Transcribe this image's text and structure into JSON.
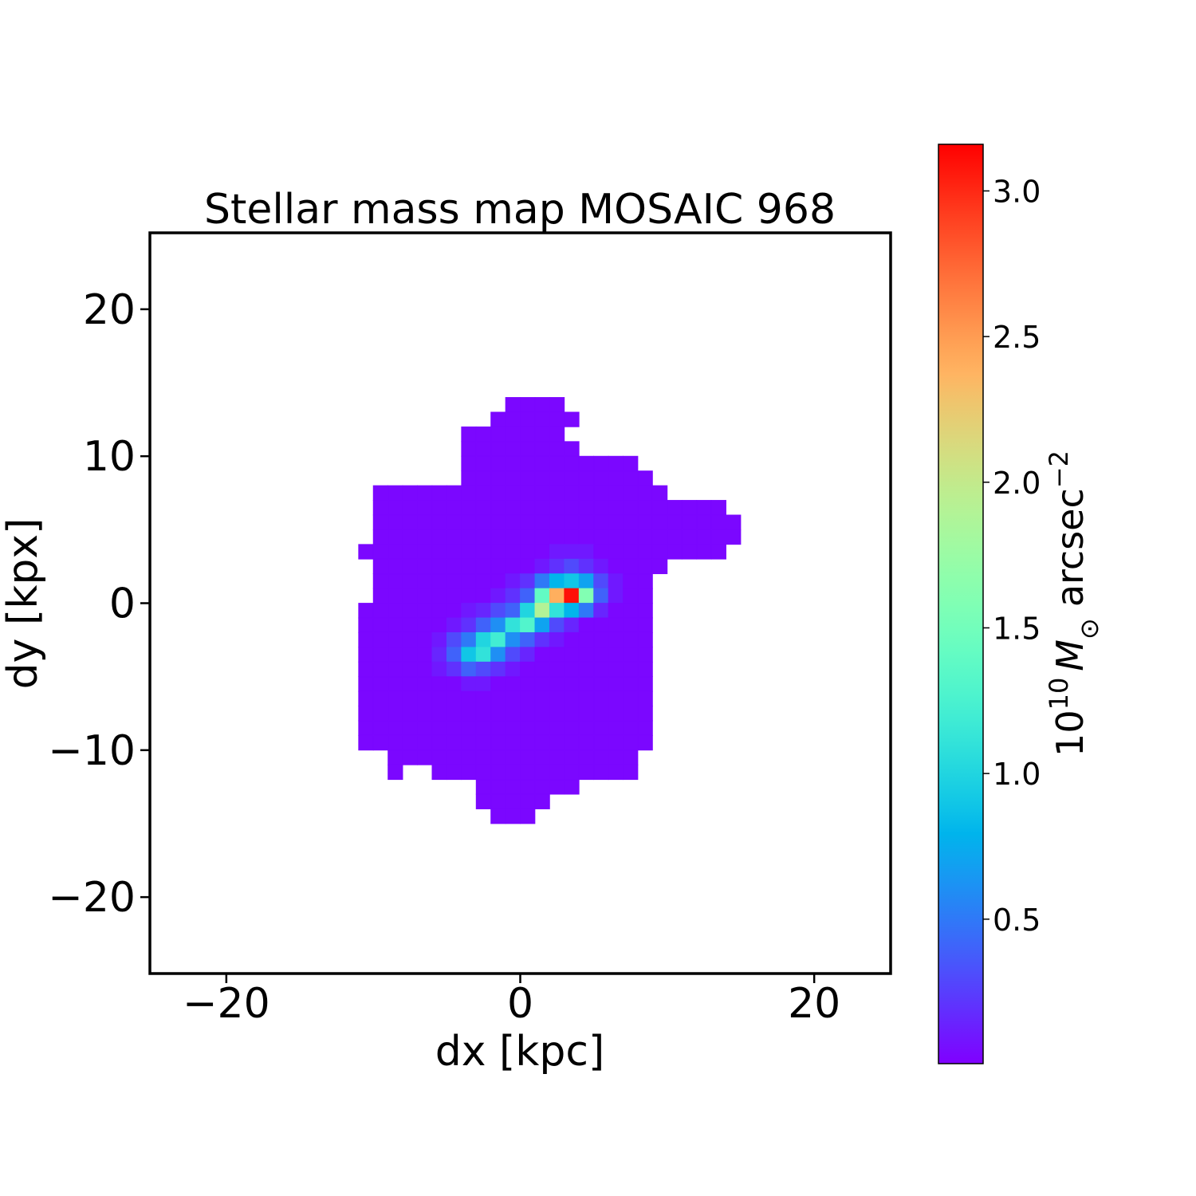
{
  "chart_data": {
    "type": "heatmap",
    "title": "Stellar mass map MOSAIC 968",
    "xlabel": "dx [kpc]",
    "ylabel": "dy [kpx]",
    "xlim": [
      -25.2,
      25.2
    ],
    "ylim": [
      -25.2,
      25.2
    ],
    "xticks": [
      {
        "value": -20,
        "label": "−20"
      },
      0,
      20
    ],
    "yticks": [
      {
        "value": -20,
        "label": "−20"
      },
      {
        "value": -10,
        "label": "−10"
      },
      0,
      10,
      20
    ],
    "extent": [
      -12,
      17,
      -15,
      14
    ],
    "colormap": "rainbow",
    "clim": [
      0.004,
      3.16
    ],
    "colorbar_ticks": [
      0.5,
      {
        "value": 1,
        "label": "1.0"
      },
      1.5,
      {
        "value": 2,
        "label": "2.0"
      },
      2.5,
      {
        "value": 3,
        "label": "3.0"
      }
    ],
    "colorbar_label": [
      {
        "text": "10"
      },
      {
        "text": "10",
        "style": "sup"
      },
      {
        "text": "M",
        "style": "italic"
      },
      {
        "text": "⊙",
        "style": "sub"
      },
      {
        "text": "arcsec"
      },
      {
        "text": "−2",
        "style": "sup"
      }
    ],
    "z": [
      [
        null,
        null,
        null,
        null,
        null,
        null,
        null,
        null,
        null,
        null,
        null,
        0.03,
        0.03,
        0.03,
        0.03,
        null,
        null,
        null,
        null,
        null,
        null,
        null,
        null,
        null,
        null,
        null,
        null,
        null,
        null
      ],
      [
        null,
        null,
        null,
        null,
        null,
        null,
        null,
        null,
        null,
        null,
        0.03,
        0.03,
        0.03,
        0.03,
        0.03,
        0.03,
        null,
        null,
        null,
        null,
        null,
        null,
        null,
        null,
        null,
        null,
        null,
        null,
        null
      ],
      [
        null,
        null,
        null,
        null,
        null,
        null,
        null,
        null,
        0.03,
        0.03,
        0.03,
        0.03,
        0.03,
        0.03,
        0.03,
        null,
        null,
        null,
        null,
        null,
        null,
        null,
        null,
        null,
        null,
        null,
        null,
        null,
        null
      ],
      [
        null,
        null,
        null,
        null,
        null,
        null,
        null,
        null,
        0.03,
        0.03,
        0.03,
        0.03,
        0.03,
        0.03,
        0.03,
        0.03,
        null,
        null,
        null,
        null,
        null,
        null,
        null,
        null,
        null,
        null,
        null,
        null,
        null
      ],
      [
        null,
        null,
        null,
        null,
        null,
        null,
        null,
        null,
        0.03,
        0.03,
        0.03,
        0.03,
        0.03,
        0.03,
        0.03,
        0.03,
        0.03,
        0.03,
        0.03,
        0.03,
        null,
        null,
        null,
        null,
        null,
        null,
        null,
        null,
        null
      ],
      [
        null,
        null,
        null,
        null,
        null,
        null,
        null,
        null,
        0.03,
        0.03,
        0.03,
        0.03,
        0.03,
        0.03,
        0.03,
        0.03,
        0.03,
        0.03,
        0.03,
        0.03,
        0.03,
        null,
        null,
        null,
        null,
        null,
        null,
        null,
        null
      ],
      [
        null,
        null,
        0.03,
        0.03,
        0.03,
        0.03,
        0.03,
        0.03,
        0.03,
        0.03,
        0.03,
        0.03,
        0.03,
        0.03,
        0.03,
        0.03,
        0.03,
        0.03,
        0.03,
        0.03,
        0.03,
        0.03,
        null,
        null,
        null,
        null,
        null,
        null,
        null
      ],
      [
        null,
        null,
        0.03,
        0.03,
        0.03,
        0.03,
        0.03,
        0.03,
        0.03,
        0.03,
        0.03,
        0.03,
        0.03,
        0.03,
        0.03,
        0.03,
        0.03,
        0.03,
        0.03,
        0.03,
        0.03,
        0.03,
        0.03,
        0.03,
        0.03,
        0.03,
        null,
        null,
        null
      ],
      [
        null,
        null,
        0.03,
        0.03,
        0.03,
        0.03,
        0.03,
        0.03,
        0.03,
        0.03,
        0.03,
        0.03,
        0.03,
        0.03,
        0.03,
        0.03,
        0.03,
        0.03,
        0.03,
        0.03,
        0.03,
        0.03,
        0.03,
        0.03,
        0.03,
        0.03,
        0.03,
        null,
        null
      ],
      [
        null,
        null,
        0.03,
        0.03,
        0.03,
        0.03,
        0.03,
        0.03,
        0.03,
        0.03,
        0.03,
        0.03,
        0.03,
        0.03,
        0.03,
        0.03,
        0.03,
        0.03,
        0.03,
        0.03,
        0.03,
        0.03,
        0.03,
        0.03,
        0.03,
        0.03,
        0.03,
        null,
        null
      ],
      [
        null,
        0.03,
        0.03,
        0.03,
        0.03,
        0.03,
        0.03,
        0.03,
        0.03,
        0.03,
        0.03,
        0.03,
        0.03,
        0.03,
        0.1,
        0.1,
        0.1,
        0.03,
        0.03,
        0.03,
        0.03,
        0.03,
        0.03,
        0.03,
        0.03,
        0.03,
        null,
        null,
        null
      ],
      [
        null,
        null,
        0.03,
        0.03,
        0.03,
        0.03,
        0.03,
        0.03,
        0.03,
        0.03,
        0.03,
        0.03,
        0.03,
        0.1,
        0.2,
        0.3,
        0.2,
        0.1,
        0.03,
        0.03,
        0.03,
        0.03,
        null,
        null,
        null,
        null,
        null,
        null,
        null
      ],
      [
        null,
        null,
        0.03,
        0.03,
        0.03,
        0.03,
        0.03,
        0.03,
        0.03,
        0.03,
        0.03,
        0.1,
        0.2,
        0.5,
        0.8,
        0.9,
        0.7,
        0.3,
        0.1,
        0.03,
        0.03,
        null,
        null,
        null,
        null,
        null,
        null,
        null,
        null
      ],
      [
        null,
        null,
        0.03,
        0.03,
        0.03,
        0.03,
        0.03,
        0.03,
        0.03,
        0.03,
        0.1,
        0.2,
        0.4,
        1.4,
        2.4,
        3.1,
        1.6,
        0.4,
        0.1,
        0.03,
        0.03,
        null,
        null,
        null,
        null,
        null,
        null,
        null,
        null
      ],
      [
        null,
        0.03,
        0.03,
        0.03,
        0.03,
        0.03,
        0.03,
        0.03,
        0.1,
        0.15,
        0.3,
        0.4,
        1.0,
        1.9,
        1.1,
        0.8,
        0.5,
        0.15,
        0.03,
        0.03,
        0.03,
        null,
        null,
        null,
        null,
        null,
        null,
        null,
        null
      ],
      [
        null,
        0.03,
        0.03,
        0.03,
        0.03,
        0.03,
        0.03,
        0.1,
        0.2,
        0.4,
        0.6,
        1.1,
        1.3,
        0.7,
        0.3,
        0.15,
        0.03,
        0.03,
        0.03,
        0.03,
        0.03,
        null,
        null,
        null,
        null,
        null,
        null,
        null,
        null
      ],
      [
        null,
        0.03,
        0.03,
        0.03,
        0.03,
        0.03,
        0.1,
        0.3,
        0.5,
        1.0,
        1.2,
        0.6,
        0.4,
        0.2,
        0.1,
        0.03,
        0.03,
        0.03,
        0.03,
        0.03,
        0.03,
        null,
        null,
        null,
        null,
        null,
        null,
        null,
        null
      ],
      [
        null,
        0.03,
        0.03,
        0.03,
        0.03,
        0.03,
        0.15,
        0.4,
        0.9,
        1.1,
        0.6,
        0.3,
        0.15,
        0.03,
        0.03,
        0.03,
        0.03,
        0.03,
        0.03,
        0.03,
        0.03,
        null,
        null,
        null,
        null,
        null,
        null,
        null,
        null
      ],
      [
        null,
        0.03,
        0.03,
        0.03,
        0.03,
        0.03,
        0.1,
        0.2,
        0.4,
        0.3,
        0.2,
        0.1,
        0.03,
        0.03,
        0.03,
        0.03,
        0.03,
        0.03,
        0.03,
        0.03,
        0.03,
        null,
        null,
        null,
        null,
        null,
        null,
        null,
        null
      ],
      [
        null,
        0.03,
        0.03,
        0.03,
        0.03,
        0.03,
        0.03,
        0.03,
        0.1,
        0.1,
        0.03,
        0.03,
        0.03,
        0.03,
        0.03,
        0.03,
        0.03,
        0.03,
        0.03,
        0.03,
        0.03,
        null,
        null,
        null,
        null,
        null,
        null,
        null,
        null
      ],
      [
        null,
        0.03,
        0.03,
        0.03,
        0.03,
        0.03,
        0.03,
        0.03,
        0.03,
        0.03,
        0.03,
        0.03,
        0.03,
        0.03,
        0.03,
        0.03,
        0.03,
        0.03,
        0.03,
        0.03,
        0.03,
        null,
        null,
        null,
        null,
        null,
        null,
        null,
        null
      ],
      [
        null,
        0.03,
        0.03,
        0.03,
        0.03,
        0.03,
        0.03,
        0.03,
        0.03,
        0.03,
        0.03,
        0.03,
        0.03,
        0.03,
        0.03,
        0.03,
        0.03,
        0.03,
        0.03,
        0.03,
        0.03,
        null,
        null,
        null,
        null,
        null,
        null,
        null,
        null
      ],
      [
        null,
        0.03,
        0.03,
        0.03,
        0.03,
        0.03,
        0.03,
        0.03,
        0.03,
        0.03,
        0.03,
        0.03,
        0.03,
        0.03,
        0.03,
        0.03,
        0.03,
        0.03,
        0.03,
        0.03,
        0.03,
        null,
        null,
        null,
        null,
        null,
        null,
        null,
        null
      ],
      [
        null,
        0.03,
        0.03,
        0.03,
        0.03,
        0.03,
        0.03,
        0.03,
        0.03,
        0.03,
        0.03,
        0.03,
        0.03,
        0.03,
        0.03,
        0.03,
        0.03,
        0.03,
        0.03,
        0.03,
        0.03,
        null,
        null,
        null,
        null,
        null,
        null,
        null,
        null
      ],
      [
        null,
        null,
        null,
        0.03,
        0.03,
        0.03,
        0.03,
        0.03,
        0.03,
        0.03,
        0.03,
        0.03,
        0.03,
        0.03,
        0.03,
        0.03,
        0.03,
        0.03,
        0.03,
        0.03,
        null,
        null,
        null,
        null,
        null,
        null,
        null,
        null,
        null
      ],
      [
        null,
        null,
        null,
        0.03,
        null,
        null,
        0.03,
        0.03,
        0.03,
        0.03,
        0.03,
        0.03,
        0.03,
        0.03,
        0.03,
        0.03,
        0.03,
        0.03,
        0.03,
        0.03,
        null,
        null,
        null,
        null,
        null,
        null,
        null,
        null,
        null
      ],
      [
        null,
        null,
        null,
        null,
        null,
        null,
        null,
        null,
        null,
        0.03,
        0.03,
        0.03,
        0.03,
        0.03,
        0.03,
        0.03,
        null,
        null,
        null,
        null,
        null,
        null,
        null,
        null,
        null,
        null,
        null,
        null,
        null
      ],
      [
        null,
        null,
        null,
        null,
        null,
        null,
        null,
        null,
        null,
        0.03,
        0.03,
        0.03,
        0.03,
        0.03,
        null,
        null,
        null,
        null,
        null,
        null,
        null,
        null,
        null,
        null,
        null,
        null,
        null,
        null,
        null
      ],
      [
        null,
        null,
        null,
        null,
        null,
        null,
        null,
        null,
        null,
        null,
        0.03,
        0.03,
        0.03,
        null,
        null,
        null,
        null,
        null,
        null,
        null,
        null,
        null,
        null,
        null,
        null,
        null,
        null,
        null,
        null
      ]
    ]
  }
}
